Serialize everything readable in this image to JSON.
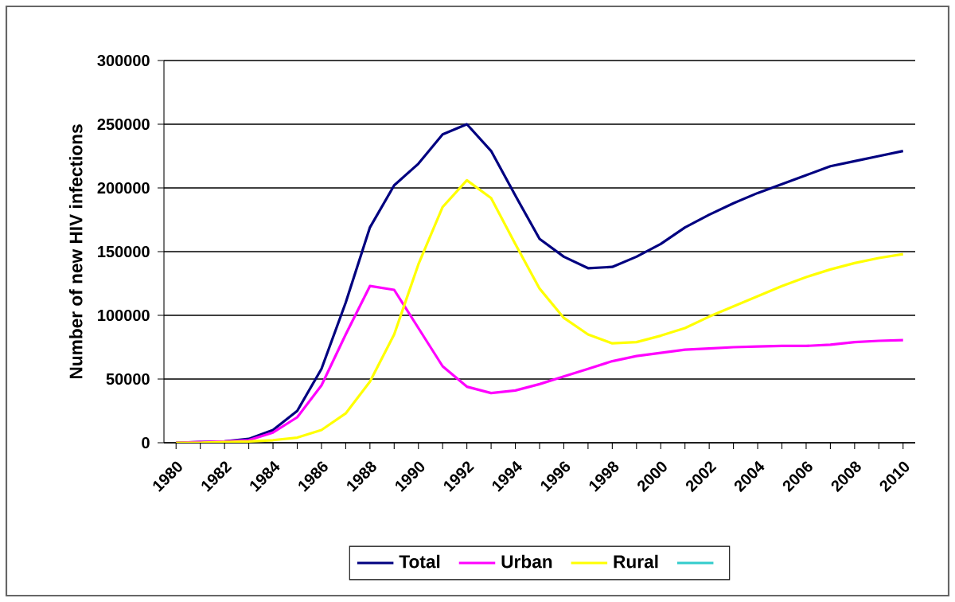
{
  "chart_data": {
    "type": "line",
    "ylabel": "Number of new HIV infections",
    "categories": [
      "1980",
      null,
      "1982",
      null,
      "1984",
      null,
      "1986",
      null,
      "1988",
      null,
      "1990",
      null,
      "1992",
      null,
      "1994",
      null,
      "1996",
      null,
      "1998",
      null,
      "2000",
      null,
      "2002",
      null,
      "2004",
      null,
      "2006",
      null,
      "2008",
      null,
      "2010"
    ],
    "series": [
      {
        "name": "Total",
        "color": "#000080",
        "values": [
          0,
          500,
          1000,
          3000,
          10000,
          25000,
          58000,
          110000,
          169000,
          202000,
          219000,
          242000,
          250000,
          229000,
          194000,
          160000,
          146000,
          137000,
          138000,
          146000,
          156000,
          169000,
          179000,
          188000,
          196000,
          203000,
          210000,
          217000,
          221000,
          225000,
          229000
        ]
      },
      {
        "name": "Urban",
        "color": "#ff00ff",
        "values": [
          0,
          500,
          1000,
          2000,
          8000,
          20000,
          45000,
          85000,
          123000,
          120000,
          90000,
          60000,
          44000,
          39000,
          41000,
          46000,
          52000,
          58000,
          64000,
          68000,
          70500,
          73000,
          74000,
          75000,
          75500,
          76000,
          76000,
          77000,
          79000,
          80000,
          80500
        ]
      },
      {
        "name": "Rural",
        "color": "#ffff00",
        "values": [
          0,
          0,
          500,
          1000,
          2000,
          4000,
          10000,
          23000,
          48000,
          85000,
          140000,
          185000,
          206000,
          192000,
          156000,
          121000,
          98000,
          85000,
          78000,
          79000,
          84000,
          90000,
          99000,
          107000,
          115000,
          123000,
          130000,
          136000,
          141000,
          145000,
          148000
        ]
      },
      {
        "color": "#33cccc",
        "values": [
          null,
          null,
          null,
          null,
          null,
          null,
          null,
          null,
          null,
          null,
          null,
          null,
          null,
          null,
          null,
          null,
          null,
          null,
          null,
          null,
          null,
          null,
          null,
          null,
          null,
          null,
          null,
          null,
          null,
          null,
          null
        ]
      }
    ],
    "ylim": [
      0,
      300000
    ],
    "yticks": [
      0,
      50000,
      100000,
      150000,
      200000,
      250000,
      300000
    ],
    "grid": "y",
    "legend": "bottom",
    "marker": "none",
    "line_style": "solid"
  }
}
